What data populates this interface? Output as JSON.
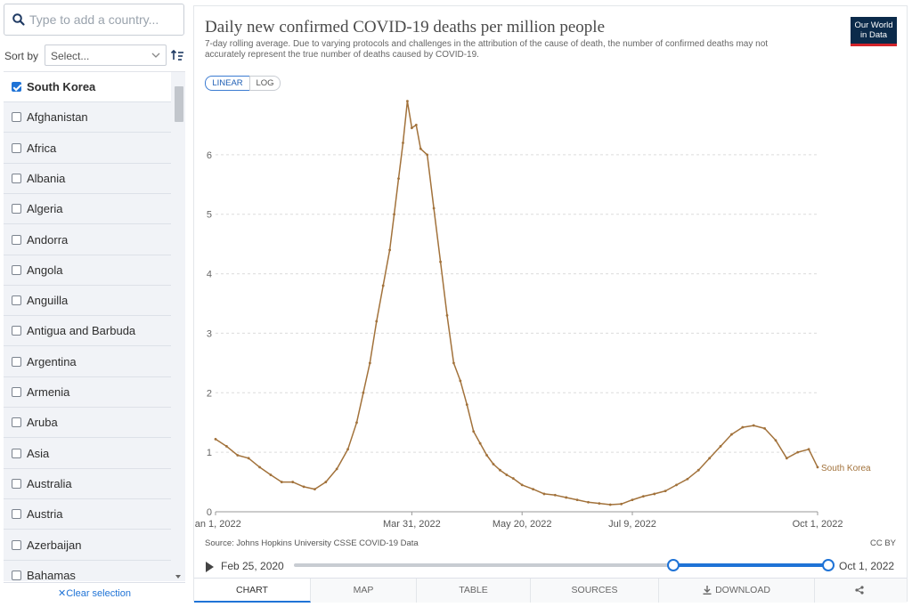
{
  "sidebar": {
    "search_placeholder": "Type to add a country...",
    "sort_label": "Sort by",
    "sort_value": "Select...",
    "clear_label": "Clear selection",
    "items": [
      {
        "label": "South Korea",
        "selected": true
      },
      {
        "label": "Afghanistan",
        "selected": false
      },
      {
        "label": "Africa",
        "selected": false
      },
      {
        "label": "Albania",
        "selected": false
      },
      {
        "label": "Algeria",
        "selected": false
      },
      {
        "label": "Andorra",
        "selected": false
      },
      {
        "label": "Angola",
        "selected": false
      },
      {
        "label": "Anguilla",
        "selected": false
      },
      {
        "label": "Antigua and Barbuda",
        "selected": false
      },
      {
        "label": "Argentina",
        "selected": false
      },
      {
        "label": "Armenia",
        "selected": false
      },
      {
        "label": "Aruba",
        "selected": false
      },
      {
        "label": "Asia",
        "selected": false
      },
      {
        "label": "Australia",
        "selected": false
      },
      {
        "label": "Austria",
        "selected": false
      },
      {
        "label": "Azerbaijan",
        "selected": false
      },
      {
        "label": "Bahamas",
        "selected": false
      }
    ]
  },
  "header": {
    "title": "Daily new confirmed COVID-19 deaths per million people",
    "subtitle": "7-day rolling average. Due to varying protocols and challenges in the attribution of the cause of death, the number of confirmed deaths may not accurately represent the true number of deaths caused by COVID-19.",
    "logo_line1": "Our World",
    "logo_line2": "in Data",
    "scale_linear": "LINEAR",
    "scale_log": "LOG"
  },
  "footer": {
    "source": "Source: Johns Hopkins University CSSE COVID-19 Data",
    "license": "CC BY"
  },
  "timeline": {
    "start_label": "Feb 25, 2020",
    "end_label": "Oct 1, 2022",
    "selection_start_fraction": 0.71,
    "selection_end_fraction": 1.0
  },
  "tabs": [
    "CHART",
    "MAP",
    "TABLE",
    "SOURCES",
    "DOWNLOAD",
    ""
  ],
  "colors": {
    "series": "#a2723b",
    "accent": "#1f73d6"
  },
  "chart_data": {
    "type": "line",
    "ylim": [
      0,
      7
    ],
    "yticks": [
      0,
      1,
      2,
      3,
      4,
      5,
      6
    ],
    "xticks": [
      {
        "date": "2022-01-01",
        "label": "Jan 1, 2022"
      },
      {
        "date": "2022-03-31",
        "label": "Mar 31, 2022"
      },
      {
        "date": "2022-05-20",
        "label": "May 20, 2022"
      },
      {
        "date": "2022-07-09",
        "label": "Jul 9, 2022"
      },
      {
        "date": "2022-10-01",
        "label": "Oct 1, 2022"
      }
    ],
    "grid": true,
    "series": [
      {
        "name": "South Korea",
        "color": "#a2723b",
        "x": [
          "2022-01-01",
          "2022-01-06",
          "2022-01-11",
          "2022-01-16",
          "2022-01-21",
          "2022-01-26",
          "2022-01-31",
          "2022-02-05",
          "2022-02-10",
          "2022-02-15",
          "2022-02-20",
          "2022-02-25",
          "2022-03-02",
          "2022-03-06",
          "2022-03-09",
          "2022-03-12",
          "2022-03-15",
          "2022-03-18",
          "2022-03-21",
          "2022-03-23",
          "2022-03-25",
          "2022-03-27",
          "2022-03-29",
          "2022-03-31",
          "2022-04-02",
          "2022-04-04",
          "2022-04-07",
          "2022-04-10",
          "2022-04-13",
          "2022-04-16",
          "2022-04-19",
          "2022-04-22",
          "2022-04-25",
          "2022-04-28",
          "2022-05-01",
          "2022-05-04",
          "2022-05-07",
          "2022-05-10",
          "2022-05-13",
          "2022-05-16",
          "2022-05-20",
          "2022-05-25",
          "2022-05-30",
          "2022-06-04",
          "2022-06-09",
          "2022-06-14",
          "2022-06-19",
          "2022-06-24",
          "2022-06-29",
          "2022-07-04",
          "2022-07-09",
          "2022-07-14",
          "2022-07-19",
          "2022-07-24",
          "2022-07-29",
          "2022-08-03",
          "2022-08-08",
          "2022-08-13",
          "2022-08-18",
          "2022-08-23",
          "2022-08-28",
          "2022-09-02",
          "2022-09-07",
          "2022-09-12",
          "2022-09-17",
          "2022-09-22",
          "2022-09-27",
          "2022-10-01"
        ],
        "y": [
          1.22,
          1.1,
          0.95,
          0.9,
          0.75,
          0.62,
          0.5,
          0.5,
          0.42,
          0.38,
          0.5,
          0.72,
          1.05,
          1.5,
          2.0,
          2.5,
          3.2,
          3.8,
          4.4,
          5.0,
          5.6,
          6.2,
          6.9,
          6.45,
          6.5,
          6.1,
          6.0,
          5.1,
          4.2,
          3.3,
          2.5,
          2.2,
          1.8,
          1.35,
          1.15,
          0.95,
          0.8,
          0.7,
          0.62,
          0.56,
          0.45,
          0.38,
          0.3,
          0.28,
          0.24,
          0.2,
          0.16,
          0.14,
          0.12,
          0.13,
          0.2,
          0.26,
          0.3,
          0.35,
          0.45,
          0.55,
          0.7,
          0.9,
          1.1,
          1.3,
          1.42,
          1.45,
          1.4,
          1.2,
          0.9,
          1.0,
          1.05,
          0.75
        ]
      }
    ]
  }
}
